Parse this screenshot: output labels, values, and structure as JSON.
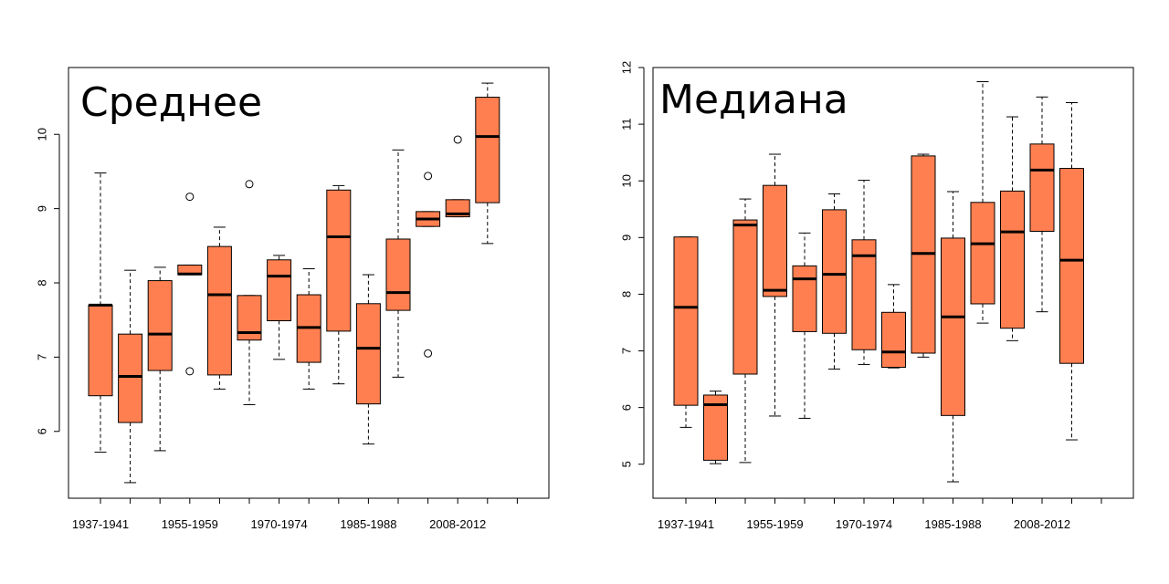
{
  "colors": {
    "box_fill": "#FF7F50",
    "stroke": "#000000",
    "background": "#FFFFFF"
  },
  "chart_data": [
    {
      "type": "boxplot",
      "title": "Среднее",
      "xlabel": "",
      "ylabel": "",
      "ylim": [
        5.1,
        10.9
      ],
      "yticks": [
        6,
        7,
        8,
        9,
        10
      ],
      "x_tick_count": 15,
      "x_tick_labels": [
        {
          "index": 1,
          "label": "1937-1941"
        },
        {
          "index": 4,
          "label": "1955-1959"
        },
        {
          "index": 7,
          "label": "1970-1974"
        },
        {
          "index": 10,
          "label": "1985-1988"
        },
        {
          "index": 13,
          "label": "2008-2012"
        }
      ],
      "boxes": [
        {
          "lower_whisker": 5.72,
          "q1": 6.48,
          "median": 7.7,
          "q3": 7.7,
          "upper_whisker": 9.48,
          "outliers": []
        },
        {
          "lower_whisker": 5.31,
          "q1": 6.12,
          "median": 6.74,
          "q3": 7.31,
          "upper_whisker": 8.17,
          "outliers": []
        },
        {
          "lower_whisker": 5.74,
          "q1": 6.82,
          "median": 7.31,
          "q3": 8.03,
          "upper_whisker": 8.21,
          "outliers": []
        },
        {
          "lower_whisker": 8.11,
          "q1": 8.11,
          "median": 8.12,
          "q3": 8.24,
          "upper_whisker": 8.24,
          "outliers": [
            9.16,
            6.81
          ]
        },
        {
          "lower_whisker": 6.57,
          "q1": 6.76,
          "median": 7.84,
          "q3": 8.49,
          "upper_whisker": 8.75,
          "outliers": []
        },
        {
          "lower_whisker": 6.36,
          "q1": 7.23,
          "median": 7.33,
          "q3": 7.83,
          "upper_whisker": 7.83,
          "outliers": [
            9.33
          ]
        },
        {
          "lower_whisker": 6.97,
          "q1": 7.49,
          "median": 8.09,
          "q3": 8.31,
          "upper_whisker": 8.37,
          "outliers": []
        },
        {
          "lower_whisker": 6.57,
          "q1": 6.93,
          "median": 7.4,
          "q3": 7.84,
          "upper_whisker": 8.19,
          "outliers": []
        },
        {
          "lower_whisker": 6.64,
          "q1": 7.35,
          "median": 8.62,
          "q3": 9.25,
          "upper_whisker": 9.31,
          "outliers": []
        },
        {
          "lower_whisker": 5.83,
          "q1": 6.37,
          "median": 7.12,
          "q3": 7.72,
          "upper_whisker": 8.11,
          "outliers": []
        },
        {
          "lower_whisker": 6.73,
          "q1": 7.63,
          "median": 7.87,
          "q3": 8.59,
          "upper_whisker": 9.79,
          "outliers": []
        },
        {
          "lower_whisker": 8.76,
          "q1": 8.76,
          "median": 8.86,
          "q3": 8.96,
          "upper_whisker": 8.96,
          "outliers": [
            9.44,
            7.05
          ]
        },
        {
          "lower_whisker": 8.89,
          "q1": 8.89,
          "median": 8.93,
          "q3": 9.12,
          "upper_whisker": 9.12,
          "outliers": [
            9.93
          ]
        },
        {
          "lower_whisker": 8.53,
          "q1": 9.08,
          "median": 9.97,
          "q3": 10.5,
          "upper_whisker": 10.69,
          "outliers": []
        }
      ]
    },
    {
      "type": "boxplot",
      "title": "Медиана",
      "xlabel": "",
      "ylabel": "",
      "ylim": [
        4.4,
        12.0
      ],
      "yticks": [
        5,
        6,
        7,
        8,
        9,
        10,
        11,
        12
      ],
      "x_tick_count": 15,
      "x_tick_labels": [
        {
          "index": 1,
          "label": "1937-1941"
        },
        {
          "index": 4,
          "label": "1955-1959"
        },
        {
          "index": 7,
          "label": "1970-1974"
        },
        {
          "index": 10,
          "label": "1985-1988"
        },
        {
          "index": 13,
          "label": "2008-2012"
        }
      ],
      "boxes": [
        {
          "lower_whisker": 5.65,
          "q1": 6.04,
          "median": 7.77,
          "q3": 9.01,
          "upper_whisker": 9.01,
          "outliers": []
        },
        {
          "lower_whisker": 5.01,
          "q1": 5.07,
          "median": 6.05,
          "q3": 6.22,
          "upper_whisker": 6.29,
          "outliers": []
        },
        {
          "lower_whisker": 5.03,
          "q1": 6.59,
          "median": 9.22,
          "q3": 9.31,
          "upper_whisker": 9.68,
          "outliers": []
        },
        {
          "lower_whisker": 5.85,
          "q1": 7.96,
          "median": 8.07,
          "q3": 9.92,
          "upper_whisker": 10.47,
          "outliers": []
        },
        {
          "lower_whisker": 5.81,
          "q1": 7.34,
          "median": 8.27,
          "q3": 8.5,
          "upper_whisker": 9.08,
          "outliers": []
        },
        {
          "lower_whisker": 6.68,
          "q1": 7.31,
          "median": 8.35,
          "q3": 9.49,
          "upper_whisker": 9.77,
          "outliers": []
        },
        {
          "lower_whisker": 6.76,
          "q1": 7.02,
          "median": 8.68,
          "q3": 8.96,
          "upper_whisker": 10.01,
          "outliers": []
        },
        {
          "lower_whisker": 6.7,
          "q1": 6.71,
          "median": 6.98,
          "q3": 7.68,
          "upper_whisker": 8.17,
          "outliers": []
        },
        {
          "lower_whisker": 6.89,
          "q1": 6.96,
          "median": 8.72,
          "q3": 10.44,
          "upper_whisker": 10.47,
          "outliers": []
        },
        {
          "lower_whisker": 4.69,
          "q1": 5.86,
          "median": 7.6,
          "q3": 8.99,
          "upper_whisker": 9.81,
          "outliers": []
        },
        {
          "lower_whisker": 7.49,
          "q1": 7.83,
          "median": 8.89,
          "q3": 9.62,
          "upper_whisker": 11.75,
          "outliers": []
        },
        {
          "lower_whisker": 7.18,
          "q1": 7.4,
          "median": 9.1,
          "q3": 9.82,
          "upper_whisker": 11.13,
          "outliers": []
        },
        {
          "lower_whisker": 7.69,
          "q1": 9.11,
          "median": 10.19,
          "q3": 10.65,
          "upper_whisker": 11.48,
          "outliers": []
        },
        {
          "lower_whisker": 5.43,
          "q1": 6.78,
          "median": 8.6,
          "q3": 10.22,
          "upper_whisker": 11.38,
          "outliers": []
        }
      ]
    }
  ]
}
